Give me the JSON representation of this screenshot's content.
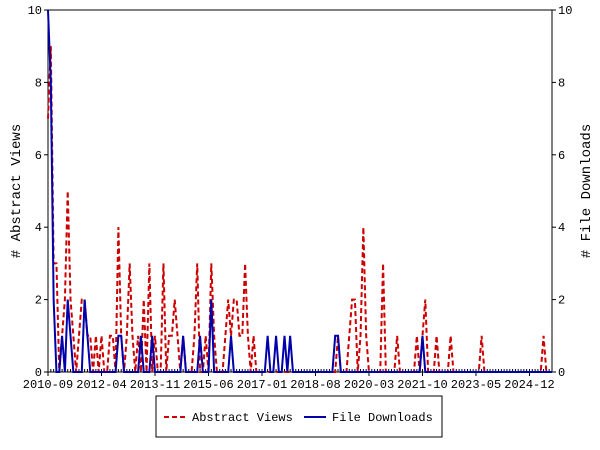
{
  "chart_data": {
    "type": "line",
    "categories": [
      "2010-09",
      null,
      null,
      null,
      null,
      null,
      null,
      null,
      null,
      null,
      null,
      null,
      null,
      null,
      null,
      null,
      null,
      null,
      null,
      "2012-04",
      null,
      null,
      null,
      null,
      null,
      null,
      null,
      null,
      null,
      null,
      null,
      null,
      null,
      null,
      null,
      null,
      null,
      null,
      "2013-11",
      null,
      null,
      null,
      null,
      null,
      null,
      null,
      null,
      null,
      null,
      null,
      null,
      null,
      null,
      null,
      null,
      null,
      null,
      "2015-06",
      null,
      null,
      null,
      null,
      null,
      null,
      null,
      null,
      null,
      null,
      null,
      null,
      null,
      null,
      null,
      null,
      null,
      null,
      "2017-01",
      null,
      null,
      null,
      null,
      null,
      null,
      null,
      null,
      null,
      null,
      null,
      null,
      null,
      null,
      null,
      null,
      null,
      null,
      "2018-08",
      null,
      null,
      null,
      null,
      null,
      null,
      null,
      null,
      null,
      null,
      null,
      null,
      null,
      null,
      null,
      null,
      null,
      null,
      "2020-03",
      null,
      null,
      null,
      null,
      null,
      null,
      null,
      null,
      null,
      null,
      null,
      null,
      null,
      null,
      null,
      null,
      null,
      null,
      "2021-10",
      null,
      null,
      null,
      null,
      null,
      null,
      null,
      null,
      null,
      null,
      null,
      null,
      null,
      null,
      null,
      null,
      null,
      null,
      "2023-05",
      null,
      null,
      null,
      null,
      null,
      null,
      null,
      null,
      null,
      null,
      null,
      null,
      null,
      null,
      null,
      null,
      null,
      null,
      "2024-12",
      null,
      null,
      null,
      null,
      null,
      null,
      null,
      null
    ],
    "series": [
      {
        "name": "Abstract Views",
        "color": "#cc0000",
        "dash": true,
        "values": [
          7,
          9,
          3,
          3,
          0,
          1,
          2,
          5,
          2,
          1,
          0,
          1,
          2,
          2,
          1,
          1,
          0,
          1,
          0,
          1,
          0,
          0,
          1,
          1,
          0,
          4,
          1,
          0,
          1,
          3,
          1,
          0,
          1,
          0,
          2,
          0,
          3,
          0,
          1,
          0,
          0,
          3,
          0,
          1,
          1,
          2,
          1,
          0,
          1,
          0,
          0,
          0,
          1,
          3,
          0,
          0,
          1,
          0,
          3,
          1,
          0,
          0,
          0,
          1,
          2,
          1,
          2,
          2,
          1,
          1,
          3,
          1,
          0,
          1,
          0,
          0,
          0,
          0,
          0,
          0,
          0,
          0,
          0,
          0,
          0,
          0,
          0,
          0,
          0,
          0,
          0,
          0,
          0,
          0,
          0,
          0,
          0,
          0,
          0,
          0,
          0,
          0,
          0,
          1,
          0,
          0,
          0,
          1,
          2,
          2,
          0,
          1,
          4,
          1,
          0,
          0,
          0,
          0,
          0,
          3,
          0,
          0,
          0,
          0,
          1,
          0,
          0,
          0,
          0,
          0,
          0,
          1,
          0,
          1,
          2,
          0,
          0,
          0,
          1,
          0,
          0,
          0,
          0,
          1,
          0,
          0,
          0,
          0,
          0,
          0,
          0,
          0,
          0,
          0,
          1,
          0,
          0,
          0,
          0,
          0,
          0,
          0,
          0,
          0,
          0,
          0,
          0,
          0,
          0,
          0,
          0,
          0,
          0,
          0,
          0,
          0,
          1,
          0,
          0,
          0
        ]
      },
      {
        "name": "File Downloads",
        "color": "#0000aa",
        "dash": false,
        "axis": "y2",
        "values": [
          10,
          8,
          2,
          0,
          0,
          1,
          0,
          2,
          1,
          0,
          0,
          0,
          0,
          2,
          1,
          0,
          0,
          0,
          0,
          0,
          0,
          0,
          0,
          0,
          0,
          1,
          1,
          0,
          0,
          0,
          0,
          0,
          0,
          1,
          0,
          0,
          0,
          1,
          0,
          0,
          0,
          0,
          0,
          0,
          0,
          0,
          0,
          0,
          1,
          0,
          0,
          0,
          0,
          0,
          1,
          0,
          0,
          0,
          2,
          0,
          0,
          0,
          0,
          0,
          0,
          1,
          0,
          0,
          0,
          0,
          0,
          0,
          0,
          0,
          0,
          0,
          0,
          0,
          1,
          0,
          0,
          1,
          0,
          0,
          1,
          0,
          1,
          0,
          0,
          0,
          0,
          0,
          0,
          0,
          0,
          0,
          0,
          0,
          0,
          0,
          0,
          0,
          1,
          1,
          0,
          0,
          0,
          0,
          0,
          0,
          0,
          0,
          0,
          0,
          0,
          0,
          0,
          0,
          0,
          0,
          0,
          0,
          0,
          0,
          0,
          0,
          0,
          0,
          0,
          0,
          0,
          0,
          0,
          1,
          0,
          0,
          0,
          0,
          0,
          0,
          0,
          0,
          0,
          0,
          0,
          0,
          0,
          0,
          0,
          0,
          0,
          0,
          0,
          0,
          0,
          0,
          0,
          0,
          0,
          0,
          0,
          0,
          0,
          0,
          0,
          0,
          0,
          0,
          0,
          0,
          0,
          0,
          0,
          0,
          0,
          0,
          0,
          0,
          0,
          0
        ]
      }
    ],
    "y_label": "# Abstract Views",
    "y2_label": "# File Downloads",
    "ylim": [
      0,
      10
    ],
    "yticks": [
      0,
      2,
      4,
      6,
      8,
      10
    ],
    "y2lim": [
      0,
      10
    ],
    "y2ticks": [
      0,
      2,
      4,
      6,
      8,
      10
    ],
    "legend": "bottom"
  }
}
